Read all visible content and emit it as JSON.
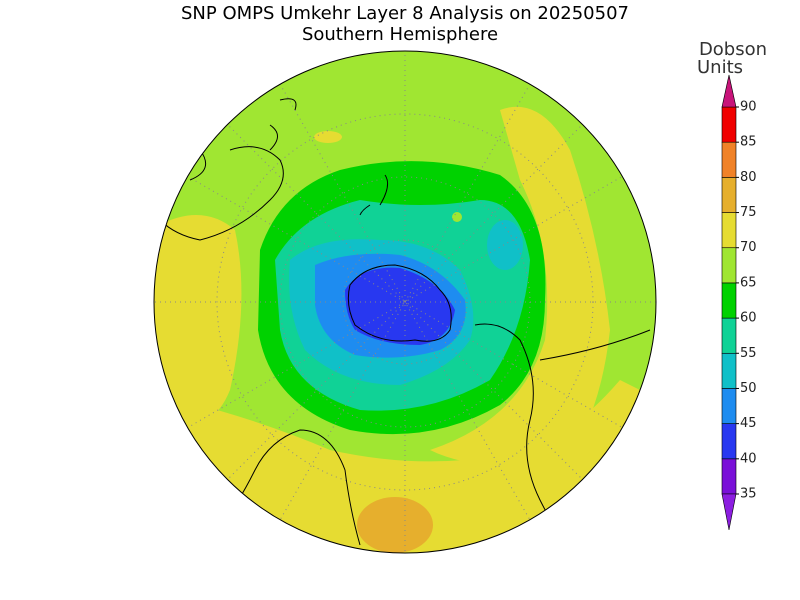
{
  "title": "SNP OMPS Umkehr Layer 8 Analysis on 20250507",
  "subtitle": "Southern Hemisphere",
  "colorbar": {
    "title": [
      "Dobson",
      "Units"
    ],
    "ticks": [
      35,
      40,
      45,
      50,
      55,
      60,
      65,
      70,
      75,
      80,
      85,
      90
    ],
    "colors": [
      "#7a10d8",
      "#2838f0",
      "#1e8cf0",
      "#10c0c8",
      "#10d296",
      "#00d200",
      "#a0e632",
      "#e6dc32",
      "#e6af2d",
      "#f08228",
      "#f00000"
    ],
    "under_color": "#8c1ee0",
    "over_color": "#c8147a"
  }
}
